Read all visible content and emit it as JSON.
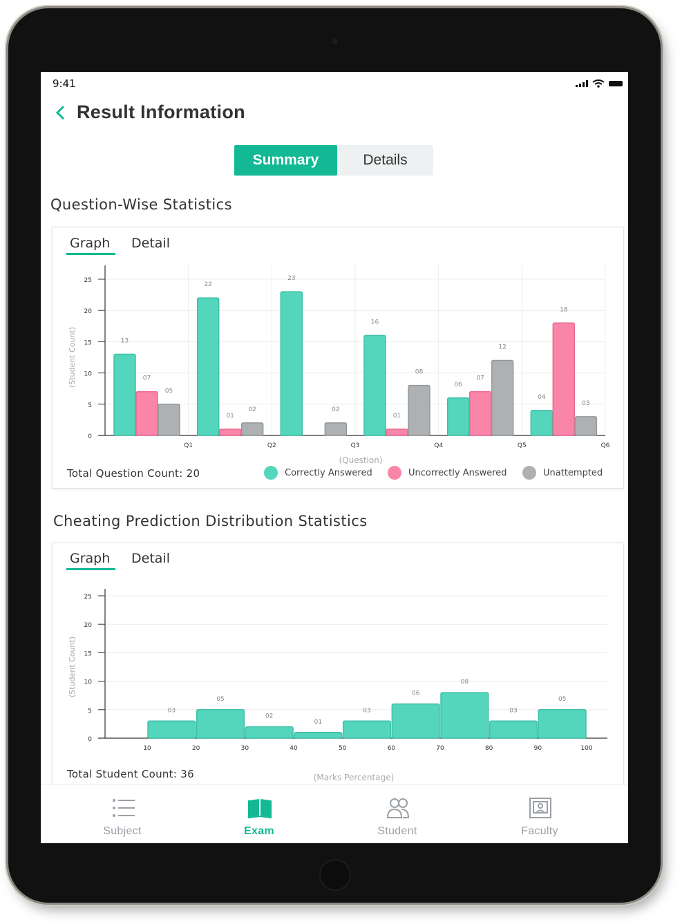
{
  "status": {
    "time": "9:41"
  },
  "header": {
    "title": "Result Information",
    "back_icon": "chevron-left-icon"
  },
  "segment": {
    "active": "Summary",
    "inactive": "Details"
  },
  "colors": {
    "accent": "#12b994",
    "correct": "#53d6bc",
    "incorrect": "#f985a9",
    "unattempted": "#aeb1b3"
  },
  "question_stats": {
    "section_title": "Question-Wise Statistics",
    "tabs": [
      "Graph",
      "Detail"
    ],
    "total_label": "Total Question Count: 20",
    "legend": [
      "Correctly Answered",
      "Uncorrectly Answered",
      "Unattempted"
    ]
  },
  "cheating_stats": {
    "section_title": "Cheating Prediction Distribution Statistics",
    "tabs": [
      "Graph",
      "Detail"
    ],
    "total_label": "Total Student Count: 36"
  },
  "chart_data": [
    {
      "type": "bar",
      "ylabel": "(Student Count)",
      "xlabel": "(Question)",
      "ylim": [
        0,
        25
      ],
      "yticks": [
        0,
        5,
        10,
        15,
        20,
        25
      ],
      "categories": [
        "Q1",
        "Q2",
        "Q3",
        "Q4",
        "Q5",
        "Q6"
      ],
      "series": [
        {
          "name": "Correctly Answered",
          "values": [
            13,
            22,
            23,
            16,
            6,
            4
          ],
          "labels": [
            "13",
            "22",
            "23",
            "16",
            "06",
            "04"
          ]
        },
        {
          "name": "Uncorrectly Answered",
          "values": [
            7,
            1,
            0,
            1,
            7,
            18
          ],
          "labels": [
            "07",
            "01",
            "",
            "01",
            "07",
            "18"
          ]
        },
        {
          "name": "Unattempted",
          "values": [
            5,
            2,
            2,
            8,
            12,
            3
          ],
          "labels": [
            "05",
            "02",
            "02",
            "08",
            "12",
            "03"
          ]
        }
      ],
      "grid": true,
      "legend_position": "bottom"
    },
    {
      "type": "bar",
      "ylabel": "(Student Count)",
      "xlabel": "(Marks Percentage)",
      "ylim": [
        0,
        25
      ],
      "yticks": [
        0,
        5,
        10,
        15,
        20,
        25
      ],
      "x_ticks": [
        10,
        20,
        30,
        40,
        50,
        60,
        70,
        80,
        90,
        100
      ],
      "bins": [
        [
          10,
          20
        ],
        [
          20,
          30
        ],
        [
          30,
          40
        ],
        [
          40,
          50
        ],
        [
          50,
          60
        ],
        [
          60,
          70
        ],
        [
          70,
          80
        ],
        [
          80,
          90
        ],
        [
          90,
          100
        ]
      ],
      "values": [
        3,
        5,
        2,
        1,
        3,
        6,
        8,
        3,
        5
      ],
      "labels": [
        "03",
        "05",
        "02",
        "01",
        "03",
        "06",
        "08",
        "03",
        "05"
      ],
      "grid": true
    }
  ],
  "nav": {
    "items": [
      {
        "label": "Subject",
        "icon": "list-icon"
      },
      {
        "label": "Exam",
        "icon": "book-icon"
      },
      {
        "label": "Student",
        "icon": "users-icon"
      },
      {
        "label": "Faculty",
        "icon": "presentation-icon"
      }
    ],
    "active": "Exam"
  }
}
